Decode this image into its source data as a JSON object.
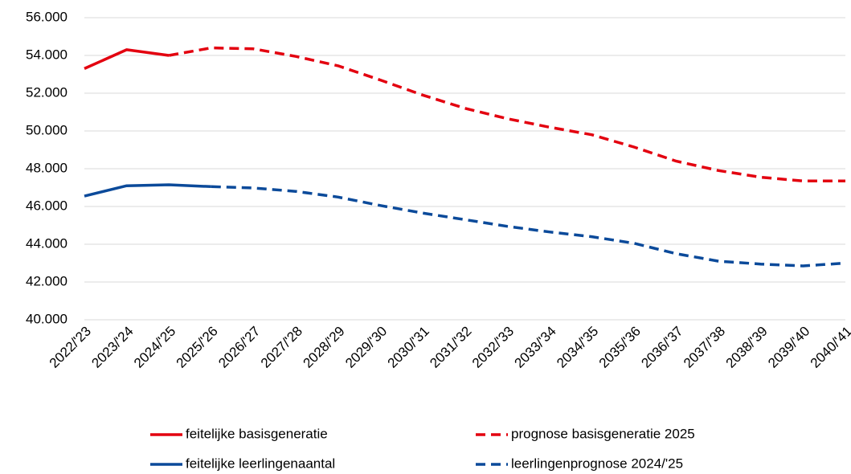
{
  "chart_data": {
    "type": "line",
    "categories": [
      "2022/'23",
      "2023/'24",
      "2024/'25",
      "2025/'26",
      "2026/'27",
      "2027/'28",
      "2028/'29",
      "2029/'30",
      "2030/'31",
      "2031/'32",
      "2032/'33",
      "2033/'34",
      "2034/'35",
      "2035/'36",
      "2036/'37",
      "2037/'38",
      "2038/'39",
      "2039/'40",
      "2040/'41"
    ],
    "series": [
      {
        "name": "feitelijke basisgeneratie",
        "color": "#e3000f",
        "style": "solid",
        "values": [
          53300,
          54300,
          54000,
          null,
          null,
          null,
          null,
          null,
          null,
          null,
          null,
          null,
          null,
          null,
          null,
          null,
          null,
          null,
          null
        ]
      },
      {
        "name": "prognose basisgeneratie 2025",
        "color": "#e3000f",
        "style": "dashed",
        "values": [
          null,
          null,
          54000,
          54400,
          54350,
          53950,
          53450,
          52700,
          51900,
          51200,
          50650,
          50200,
          49800,
          49150,
          48400,
          47900,
          47550,
          47350,
          47350
        ]
      },
      {
        "name": "feitelijke leerlingenaantal",
        "color": "#0b4a9a",
        "style": "solid",
        "values": [
          46550,
          47100,
          47150,
          47050,
          null,
          null,
          null,
          null,
          null,
          null,
          null,
          null,
          null,
          null,
          null,
          null,
          null,
          null,
          null
        ]
      },
      {
        "name": "leerlingenprognose 2024/'25",
        "color": "#0b4a9a",
        "style": "dashed",
        "values": [
          null,
          null,
          null,
          47050,
          46980,
          46800,
          46500,
          46050,
          45650,
          45300,
          44950,
          44650,
          44400,
          44050,
          43500,
          43100,
          42950,
          42850,
          43000
        ]
      }
    ],
    "ylim": [
      40000,
      56000
    ],
    "yticks": [
      {
        "value": 40000,
        "label": "40.000"
      },
      {
        "value": 42000,
        "label": "42.000"
      },
      {
        "value": 44000,
        "label": "44.000"
      },
      {
        "value": 46000,
        "label": "46.000"
      },
      {
        "value": 48000,
        "label": "48.000"
      },
      {
        "value": 50000,
        "label": "50.000"
      },
      {
        "value": 52000,
        "label": "52.000"
      },
      {
        "value": 54000,
        "label": "54.000"
      },
      {
        "value": 56000,
        "label": "56.000"
      }
    ],
    "grid": true,
    "legend": "bottom"
  }
}
